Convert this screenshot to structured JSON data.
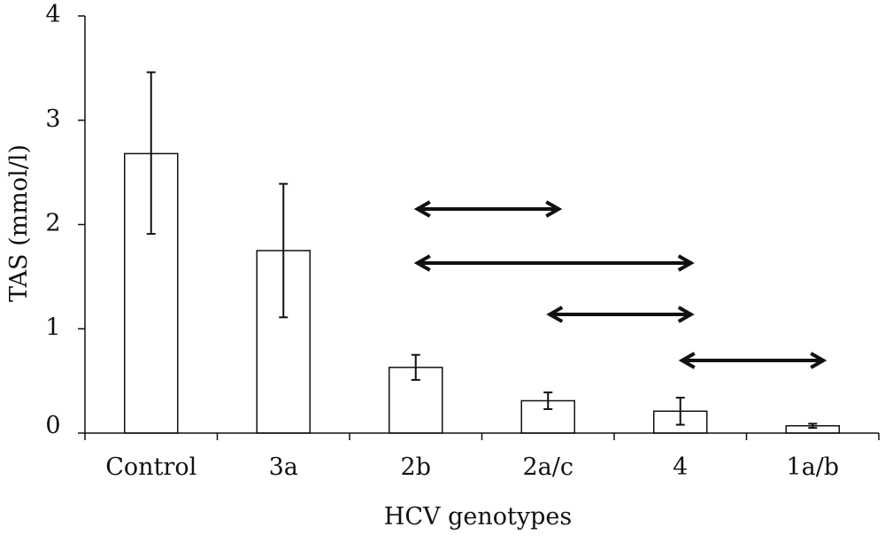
{
  "chart_data": {
    "type": "bar",
    "title": "",
    "xlabel": "HCV genotypes",
    "ylabel": "TAS (mmol/l)",
    "ylim": [
      0,
      4
    ],
    "yticks": [
      0,
      1,
      2,
      3,
      4
    ],
    "categories": [
      "Control",
      "3a",
      "2b",
      "2a/c",
      "4",
      "1a/b"
    ],
    "values": [
      2.68,
      1.75,
      0.63,
      0.31,
      0.21,
      0.07
    ],
    "error_low": [
      1.91,
      1.11,
      0.51,
      0.23,
      0.08,
      0.05
    ],
    "error_high": [
      3.46,
      2.39,
      0.75,
      0.39,
      0.34,
      0.09
    ],
    "annotations": [
      {
        "type": "double-arrow",
        "from": "2b",
        "to": "2a/c"
      },
      {
        "type": "double-arrow",
        "from": "2b",
        "to": "4"
      },
      {
        "type": "double-arrow",
        "from": "2a/c",
        "to": "4"
      },
      {
        "type": "double-arrow",
        "from": "4",
        "to": "1a/b"
      }
    ],
    "bar_fill": "#ffffff",
    "stroke_color": "#111111",
    "grid": false,
    "legend": "none"
  }
}
